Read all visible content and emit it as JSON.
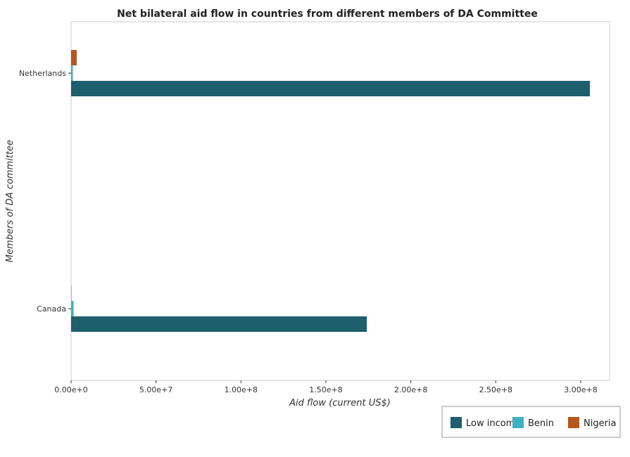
{
  "chart_data": {
    "type": "bar",
    "orientation": "horizontal",
    "title": "Net bilateral aid flow in countries from different members of DA Committee",
    "xlabel": "Aid flow (current US$)",
    "ylabel": "Members of DA committee",
    "categories": [
      "Canada",
      "Netherlands"
    ],
    "series": [
      {
        "name": "Low income",
        "color": "#1e5f6e",
        "values": [
          174100000,
          305400000
        ]
      },
      {
        "name": "Benin",
        "color": "#3fb1c2",
        "values": [
          1500000,
          1000000
        ]
      },
      {
        "name": "Nigeria",
        "color": "#b5571f",
        "values": [
          200000,
          3300000
        ]
      }
    ],
    "xlim": [
      0,
      317000000
    ],
    "xticks": [
      0,
      50000000,
      100000000,
      150000000,
      200000000,
      250000000,
      300000000
    ],
    "xtick_labels": [
      "0.00e+0",
      "5.00e+7",
      "1.00e+8",
      "1.50e+8",
      "2.00e+8",
      "2.50e+8",
      "3.00e+8"
    ],
    "legend_position": "bottom-right",
    "grid": false
  }
}
